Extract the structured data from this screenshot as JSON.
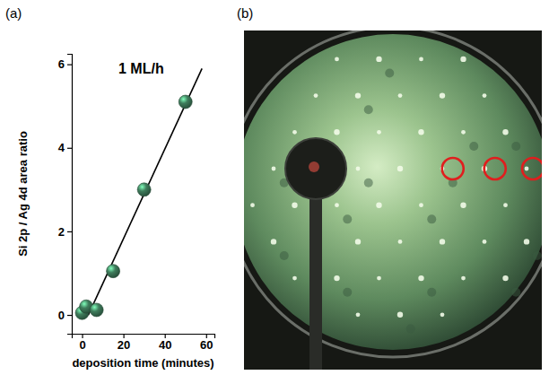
{
  "chart_data": {
    "type": "scatter",
    "panel_label": "(a)",
    "annotation": "1 ML/h",
    "x_label": "deposition time (minutes)",
    "y_label": "Si 2p / Ag 4d area ratio",
    "xlim": [
      -5,
      64
    ],
    "xticks": [
      0,
      20,
      40,
      60
    ],
    "ylim": [
      -0.45,
      6.25
    ],
    "yticks": [
      0,
      2,
      4,
      6
    ],
    "series": [
      {
        "type": "scatter",
        "marker": "circle",
        "color": "#3f7d5c",
        "x": [
          0,
          2,
          7,
          15,
          30,
          50
        ],
        "values": [
          0.05,
          0.2,
          0.12,
          1.05,
          3.0,
          5.1
        ]
      },
      {
        "type": "line",
        "line_style": "solid",
        "color": "#000000",
        "x": [
          3,
          58
        ],
        "values": [
          0,
          5.9
        ]
      }
    ]
  },
  "image": {
    "panel_label": "(b)"
  }
}
